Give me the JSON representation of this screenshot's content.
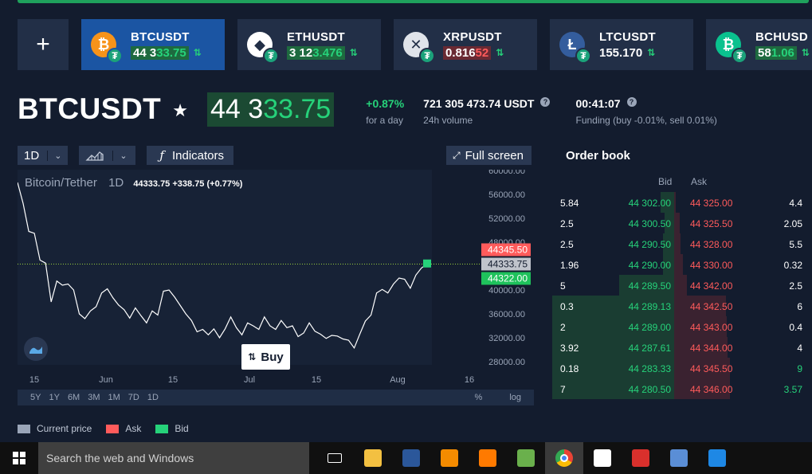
{
  "tickers": [
    {
      "symbol": "BTCUSDT",
      "price_base": "44 3",
      "price_hi": "33.75",
      "price_style": "green",
      "coin_letter": "₿",
      "coin_color": "#f7931a",
      "active": true
    },
    {
      "symbol": "ETHUSDT",
      "price_base": "3 12",
      "price_hi": "3.476",
      "price_style": "green",
      "coin_letter": "◆",
      "coin_color": "#ffffff",
      "active": false
    },
    {
      "symbol": "XRPUSDT",
      "price_base": "0.816",
      "price_hi": "52",
      "price_style": "red",
      "coin_letter": "✕",
      "coin_color": "#e0e4ea",
      "active": false
    },
    {
      "symbol": "LTCUSDT",
      "price_base": "155.170",
      "price_hi": "",
      "price_style": "none",
      "coin_letter": "Ł",
      "coin_color": "#345d9d",
      "active": false
    },
    {
      "symbol": "BCHUSD",
      "price_base": "58",
      "price_hi": "1.06",
      "price_style": "green",
      "coin_letter": "₿",
      "coin_color": "#0ac18e",
      "active": false
    }
  ],
  "header": {
    "pair": "BTCUSDT",
    "star": "★",
    "price_base": "44 3",
    "price_hi": "33.75",
    "change": "+0.87%",
    "change_label": "for a day",
    "volume": "721 305 473.74 USDT",
    "volume_label": "24h volume",
    "funding_time": "00:41:07",
    "funding_label": "Funding (buy -0.01%, sell 0.01%)"
  },
  "toolbar": {
    "interval": "1D",
    "indicators": "Indicators",
    "fullscreen": "Full screen"
  },
  "chart_info": {
    "name": "Bitcoin/Tether",
    "interval": "1D",
    "values": "44333.75  +338.75 (+0.77%)"
  },
  "chart_data": {
    "type": "line",
    "ylim": [
      28000,
      60000
    ],
    "y_ticks": [
      60000,
      56000,
      52000,
      48000,
      44000,
      40000,
      36000,
      32000,
      28000
    ],
    "y_tick_labels": [
      "60000.00",
      "56000.00",
      "52000.00",
      "48000.00",
      "44000.00",
      "40000.00",
      "36000.00",
      "32000.00",
      "28000.00"
    ],
    "x_ticks": [
      "15",
      "Jun",
      "15",
      "Jul",
      "15",
      "Aug",
      "16"
    ],
    "ask_label": "44345.50",
    "current_label": "44333.75",
    "bid_label": "44322.00",
    "current_value": 44333.75,
    "series": [
      {
        "values": [
          58000,
          54500,
          49800,
          49500,
          45000,
          44500,
          38000,
          41500,
          40800,
          41000,
          40000,
          36000,
          35200,
          36500,
          37200,
          39500,
          40200,
          38700,
          37500,
          36700,
          35300,
          37000,
          35700,
          34500,
          36500,
          35800,
          39800,
          40000,
          38800,
          37400,
          36000,
          34900,
          33000,
          33400,
          32500,
          33500,
          32000,
          33500,
          35500,
          33700,
          32500,
          34500,
          34000,
          33400,
          35500,
          34000,
          33400,
          34900,
          33700,
          34000,
          32200,
          32800,
          34500,
          33100,
          32600,
          31900,
          32400,
          32300,
          31800,
          31600,
          30300,
          32600,
          34800,
          35800,
          39500,
          40100,
          39500,
          41000,
          42000,
          41800,
          40300,
          42500,
          43700,
          44300
        ]
      }
    ]
  },
  "range_bar": {
    "ranges": [
      "5Y",
      "1Y",
      "6M",
      "3M",
      "1M",
      "7D",
      "1D"
    ],
    "percent": "%",
    "log": "log"
  },
  "buy_label": "Buy",
  "legend": {
    "current": "Current price",
    "ask": "Ask",
    "bid": "Bid",
    "current_color": "#9aa5b8",
    "ask_color": "#ff5b5b",
    "bid_color": "#26d27a"
  },
  "orderbook": {
    "title": "Order book",
    "bid_header": "Bid",
    "ask_header": "Ask",
    "rows": [
      {
        "bid_size": "5.84",
        "bid_price": "44 302.00",
        "ask_price": "44 325.00",
        "ask_size": "4.4",
        "bid_fill": 0.11,
        "ask_fill": 0.02
      },
      {
        "bid_size": "2.5",
        "bid_price": "44 300.50",
        "ask_price": "44 325.50",
        "ask_size": "2.05",
        "bid_fill": 0.08,
        "ask_fill": 0.06
      },
      {
        "bid_size": "2.5",
        "bid_price": "44 290.50",
        "ask_price": "44 328.00",
        "ask_size": "5.5",
        "bid_fill": 0.09,
        "ask_fill": 0.07
      },
      {
        "bid_size": "1.96",
        "bid_price": "44 290.00",
        "ask_price": "44 330.00",
        "ask_size": "0.32",
        "bid_fill": 0.09,
        "ask_fill": 0.09
      },
      {
        "bid_size": "5",
        "bid_price": "44 289.50",
        "ask_price": "44 342.00",
        "ask_size": "2.5",
        "bid_fill": 0.45,
        "ask_fill": 0.13
      },
      {
        "bid_size": "0.3",
        "bid_price": "44 289.13",
        "ask_price": "44 342.50",
        "ask_size": "6",
        "bid_fill": 1.0,
        "ask_fill": 0.54
      },
      {
        "bid_size": "2",
        "bid_price": "44 289.00",
        "ask_price": "44 343.00",
        "ask_size": "0.4",
        "bid_fill": 1.0,
        "ask_fill": 0.55
      },
      {
        "bid_size": "3.92",
        "bid_price": "44 287.61",
        "ask_price": "44 344.00",
        "ask_size": "4",
        "bid_fill": 1.0,
        "ask_fill": 0.56
      },
      {
        "bid_size": "0.18",
        "bid_price": "44 283.33",
        "ask_price": "44 345.50",
        "ask_size": "9",
        "bid_fill": 1.0,
        "ask_fill": 0.58
      },
      {
        "bid_size": "7",
        "bid_price": "44 280.50",
        "ask_price": "44 346.00",
        "ask_size": "3.57",
        "ask_green": true,
        "bid_fill": 1.0,
        "ask_fill": 0.58
      }
    ]
  },
  "taskbar": {
    "search_placeholder": "Search the web and Windows",
    "apps": [
      {
        "name": "task-view-icon",
        "color": "#101010"
      },
      {
        "name": "file-explorer-icon",
        "color": "#f3c041"
      },
      {
        "name": "word-icon",
        "color": "#2b579a"
      },
      {
        "name": "vlc-icon",
        "color": "#f48b00"
      },
      {
        "name": "ucbrowser-icon",
        "color": "#ff7a00"
      },
      {
        "name": "notepad-icon",
        "color": "#6ab04c"
      },
      {
        "name": "chrome-icon",
        "color": "#4285f4"
      },
      {
        "name": "photos-icon",
        "color": "#ffffff"
      },
      {
        "name": "pdf-icon",
        "color": "#d9302c"
      },
      {
        "name": "network-icon",
        "color": "#5a8ed6"
      },
      {
        "name": "calculator-icon",
        "color": "#1e88e5"
      }
    ]
  }
}
